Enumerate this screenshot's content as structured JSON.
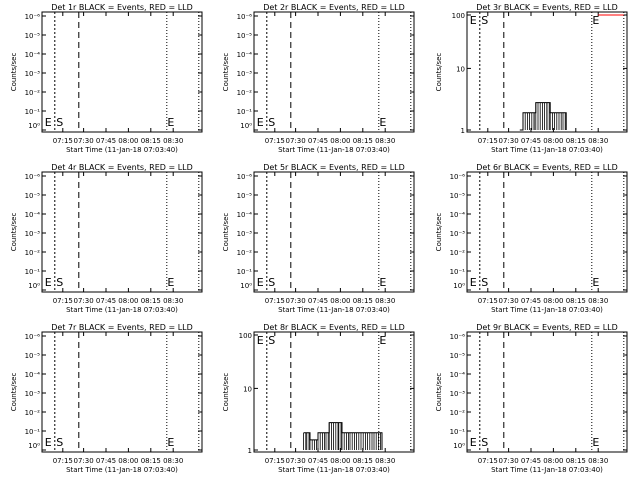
{
  "chart_data": [
    {
      "type": "line",
      "title": "Det 1r BLACK = Events, RED = LLD",
      "xlabel": "Start Time (11-Jan-18 07:03:40)",
      "ylabel": "Counts/sec",
      "xticks": [
        "07:15",
        "07:30",
        "07:45",
        "08:00",
        "08:15",
        "08:30"
      ],
      "yscale": "log",
      "yticks": [
        "10⁰",
        "10⁻¹",
        "10⁻²",
        "10⁻³",
        "10⁻⁴",
        "10⁻⁵",
        "10⁻⁶"
      ],
      "markers": {
        "E_left": "E",
        "S": "S",
        "E_right": "E"
      },
      "series": [
        {
          "values": []
        }
      ]
    },
    {
      "type": "line",
      "title": "Det 2r BLACK = Events, RED = LLD",
      "xlabel": "Start Time (11-Jan-18 07:03:40)",
      "ylabel": "Counts/sec",
      "xticks": [
        "07:15",
        "07:30",
        "07:45",
        "08:00",
        "08:15",
        "08:30"
      ],
      "yscale": "log",
      "yticks": [
        "10⁰",
        "10⁻¹",
        "10⁻²",
        "10⁻³",
        "10⁻⁴",
        "10⁻⁵",
        "10⁻⁶"
      ],
      "markers": {
        "E_left": "E",
        "S": "S",
        "E_right": "E"
      },
      "series": [
        {
          "values": []
        }
      ]
    },
    {
      "type": "line",
      "title": "Det 3r BLACK = Events, RED = LLD",
      "xlabel": "Start Time (11-Jan-18 07:03:40)",
      "ylabel": "Counts/sec",
      "xticks": [
        "07:15",
        "07:30",
        "07:45",
        "08:00",
        "08:15",
        "08:30"
      ],
      "yscale": "log",
      "yticks": [
        "100",
        "10",
        "1"
      ],
      "markers": {
        "E_left": "E",
        "S": "S",
        "E_right": "E"
      },
      "series": [
        {
          "color": "#000000",
          "values": [
            [
              0.33,
              1
            ],
            [
              0.35,
              2
            ],
            [
              0.42,
              2
            ],
            [
              0.43,
              3
            ],
            [
              0.5,
              3
            ],
            [
              0.52,
              2
            ],
            [
              0.6,
              2
            ],
            [
              0.62,
              1
            ]
          ]
        },
        {
          "color": "#ff0000",
          "values": [
            [
              0.82,
              100
            ],
            [
              0.98,
              100
            ]
          ]
        }
      ]
    },
    {
      "type": "line",
      "title": "Det 4r BLACK = Events, RED = LLD",
      "xlabel": "Start Time (11-Jan-18 07:03:40)",
      "ylabel": "Counts/sec",
      "xticks": [
        "07:15",
        "07:30",
        "07:45",
        "08:00",
        "08:15",
        "08:30"
      ],
      "yscale": "log",
      "yticks": [
        "10⁰",
        "10⁻¹",
        "10⁻²",
        "10⁻³",
        "10⁻⁴",
        "10⁻⁵",
        "10⁻⁶"
      ],
      "markers": {
        "E_left": "E",
        "S": "S",
        "E_right": "E"
      },
      "series": [
        {
          "values": []
        }
      ]
    },
    {
      "type": "line",
      "title": "Det 5r BLACK = Events, RED = LLD",
      "xlabel": "Start Time (11-Jan-18 07:03:40)",
      "ylabel": "Counts/sec",
      "xticks": [
        "07:15",
        "07:30",
        "07:45",
        "08:00",
        "08:15",
        "08:30"
      ],
      "yscale": "log",
      "yticks": [
        "10⁰",
        "10⁻¹",
        "10⁻²",
        "10⁻³",
        "10⁻⁴",
        "10⁻⁵",
        "10⁻⁶"
      ],
      "markers": {
        "E_left": "E",
        "S": "S",
        "E_right": "E"
      },
      "series": [
        {
          "values": []
        }
      ]
    },
    {
      "type": "line",
      "title": "Det 6r BLACK = Events, RED = LLD",
      "xlabel": "Start Time (11-Jan-18 07:03:40)",
      "ylabel": "Counts/sec",
      "xticks": [
        "07:15",
        "07:30",
        "07:45",
        "08:00",
        "08:15",
        "08:30"
      ],
      "yscale": "log",
      "yticks": [
        "10⁰",
        "10⁻¹",
        "10⁻²",
        "10⁻³",
        "10⁻⁴",
        "10⁻⁵",
        "10⁻⁶"
      ],
      "markers": {
        "E_left": "E",
        "S": "S",
        "E_right": "E"
      },
      "series": [
        {
          "values": []
        }
      ]
    },
    {
      "type": "line",
      "title": "Det 7r BLACK = Events, RED = LLD",
      "xlabel": "Start Time (11-Jan-18 07:03:40)",
      "ylabel": "Counts/sec",
      "xticks": [
        "07:15",
        "07:30",
        "07:45",
        "08:00",
        "08:15",
        "08:30"
      ],
      "yscale": "log",
      "yticks": [
        "10⁰",
        "10⁻¹",
        "10⁻²",
        "10⁻³",
        "10⁻⁴",
        "10⁻⁵",
        "10⁻⁶"
      ],
      "markers": {
        "E_left": "E",
        "S": "S",
        "E_right": "E"
      },
      "series": [
        {
          "values": []
        }
      ]
    },
    {
      "type": "line",
      "title": "Det 8r BLACK = Events, RED = LLD",
      "xlabel": "Start Time (11-Jan-18 07:03:40)",
      "ylabel": "Counts/sec",
      "xticks": [
        "07:15",
        "07:30",
        "07:45",
        "08:00",
        "08:15",
        "08:30"
      ],
      "yscale": "log",
      "yticks": [
        "100",
        "10",
        "1"
      ],
      "markers": {
        "E_left": "E",
        "S": "S",
        "E_right": "E"
      },
      "series": [
        {
          "color": "#000000",
          "values": [
            [
              0.31,
              2
            ],
            [
              0.33,
              2
            ],
            [
              0.35,
              1.5
            ],
            [
              0.4,
              2
            ],
            [
              0.45,
              2
            ],
            [
              0.47,
              3
            ],
            [
              0.53,
              3
            ],
            [
              0.55,
              2
            ],
            [
              0.6,
              2
            ],
            [
              0.75,
              2
            ],
            [
              0.8,
              1
            ]
          ]
        }
      ]
    },
    {
      "type": "line",
      "title": "Det 9r BLACK = Events, RED = LLD",
      "xlabel": "Start Time (11-Jan-18 07:03:40)",
      "ylabel": "Counts/sec",
      "xticks": [
        "07:15",
        "07:30",
        "07:45",
        "08:00",
        "08:15",
        "08:30"
      ],
      "yscale": "log",
      "yticks": [
        "10⁰",
        "10⁻¹",
        "10⁻²",
        "10⁻³",
        "10⁻⁴",
        "10⁻⁵",
        "10⁻⁶"
      ],
      "markers": {
        "E_left": "E",
        "S": "S",
        "E_right": "E"
      },
      "series": [
        {
          "values": []
        }
      ]
    }
  ]
}
